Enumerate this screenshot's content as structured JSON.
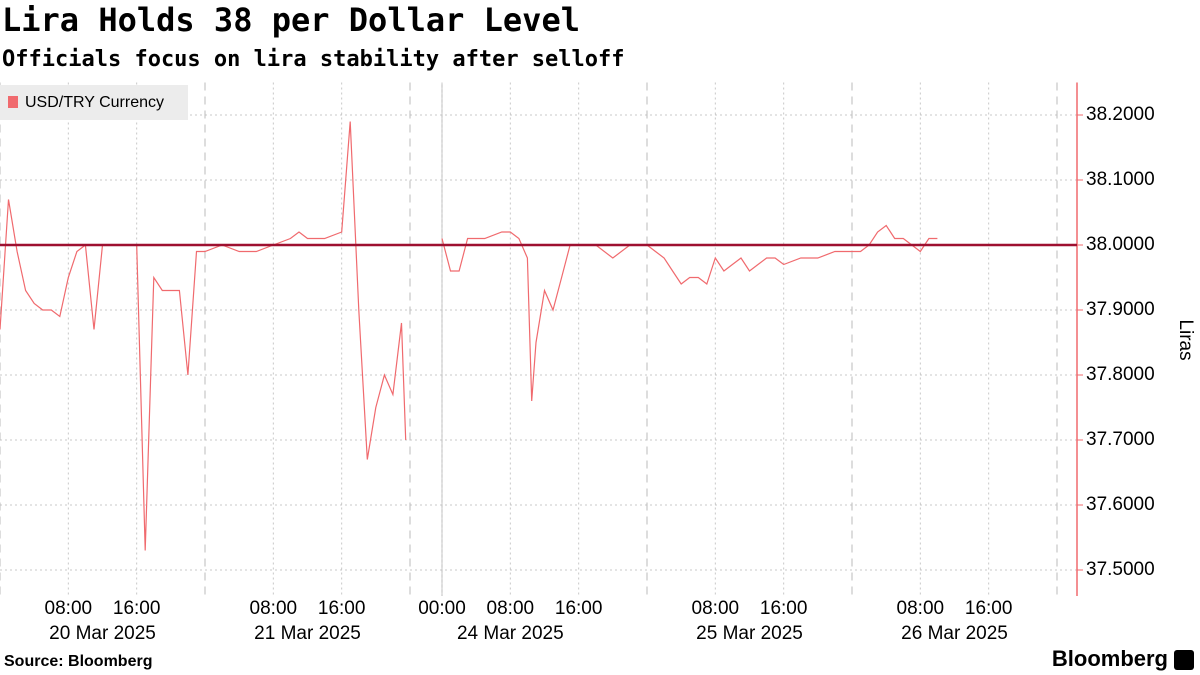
{
  "chart_data": {
    "type": "line",
    "title": "Lira Holds 38 per Dollar Level",
    "subtitle": "Officials focus on lira stability after selloff",
    "y_label": "Liras",
    "source": "Source: Bloomberg",
    "branding": "Bloomberg",
    "grid": true,
    "legend": "top-left",
    "reference_line": {
      "value": 38,
      "color": "#9e1030"
    },
    "xlim": [
      "2025-03-20 00:00",
      "2025-03-27 02:00"
    ],
    "ylim": [
      37.46,
      38.25
    ],
    "yticks": [
      {
        "value": 37.5,
        "label": "37.5000"
      },
      {
        "value": 37.6,
        "label": "37.6000"
      },
      {
        "value": 37.7,
        "label": "37.7000"
      },
      {
        "value": 37.8,
        "label": "37.8000"
      },
      {
        "value": 37.9,
        "label": "37.9000"
      },
      {
        "value": 38.0,
        "label": "38.0000"
      },
      {
        "value": 38.1,
        "label": "38.1000"
      },
      {
        "value": 38.2,
        "label": "38.2000"
      }
    ],
    "xticks": [
      {
        "value": "2025-03-20 08:00",
        "label": "08:00"
      },
      {
        "value": "2025-03-20 16:00",
        "label": "16:00"
      },
      {
        "value": "2025-03-21 08:00",
        "label": "08:00"
      },
      {
        "value": "2025-03-21 16:00",
        "label": "16:00"
      },
      {
        "value": "2025-03-24 00:00",
        "label": "00:00"
      },
      {
        "value": "2025-03-24 08:00",
        "label": "08:00"
      },
      {
        "value": "2025-03-24 16:00",
        "label": "16:00"
      },
      {
        "value": "2025-03-25 08:00",
        "label": "08:00"
      },
      {
        "value": "2025-03-25 16:00",
        "label": "16:00"
      },
      {
        "value": "2025-03-26 08:00",
        "label": "08:00"
      },
      {
        "value": "2025-03-26 16:00",
        "label": "16:00"
      }
    ],
    "date_labels": [
      {
        "value": "2025-03-20 12:00",
        "label": "20 Mar 2025"
      },
      {
        "value": "2025-03-21 12:00",
        "label": "21 Mar 2025"
      },
      {
        "value": "2025-03-24 08:00",
        "label": "24 Mar 2025"
      },
      {
        "value": "2025-03-25 12:00",
        "label": "25 Mar 2025"
      },
      {
        "value": "2025-03-26 12:00",
        "label": "26 Mar 2025"
      }
    ],
    "x": [
      "2025-03-20 00:00",
      "2025-03-20 01:00",
      "2025-03-20 02:00",
      "2025-03-20 03:00",
      "2025-03-20 04:00",
      "2025-03-20 05:00",
      "2025-03-20 06:00",
      "2025-03-20 07:00",
      "2025-03-20 08:00",
      "2025-03-20 09:00",
      "2025-03-20 10:00",
      "2025-03-20 11:00",
      "2025-03-20 12:00",
      "2025-03-20 13:00",
      "2025-03-20 14:00",
      "2025-03-20 15:00",
      "2025-03-20 16:00",
      "2025-03-20 17:00",
      "2025-03-20 18:00",
      "2025-03-20 19:00",
      "2025-03-20 20:00",
      "2025-03-20 21:00",
      "2025-03-20 22:00",
      "2025-03-20 23:00",
      "2025-03-21 00:00",
      "2025-03-21 02:00",
      "2025-03-21 04:00",
      "2025-03-21 06:00",
      "2025-03-21 08:00",
      "2025-03-21 10:00",
      "2025-03-21 11:00",
      "2025-03-21 12:00",
      "2025-03-21 14:00",
      "2025-03-21 16:00",
      "2025-03-21 17:00",
      "2025-03-21 18:00",
      "2025-03-21 19:00",
      "2025-03-21 20:00",
      "2025-03-21 21:00",
      "2025-03-21 22:00",
      "2025-03-21 23:00",
      "2025-03-21 23:30",
      "2025-03-22 12:00",
      "2025-03-24 00:00",
      "2025-03-24 01:00",
      "2025-03-24 02:00",
      "2025-03-24 03:00",
      "2025-03-24 05:00",
      "2025-03-24 07:00",
      "2025-03-24 08:00",
      "2025-03-24 09:00",
      "2025-03-24 10:00",
      "2025-03-24 10:30",
      "2025-03-24 11:00",
      "2025-03-24 12:00",
      "2025-03-24 13:00",
      "2025-03-24 14:00",
      "2025-03-24 15:00",
      "2025-03-24 16:00",
      "2025-03-24 18:00",
      "2025-03-24 20:00",
      "2025-03-24 22:00",
      "2025-03-25 00:00",
      "2025-03-25 01:00",
      "2025-03-25 02:00",
      "2025-03-25 03:00",
      "2025-03-25 04:00",
      "2025-03-25 05:00",
      "2025-03-25 06:00",
      "2025-03-25 07:00",
      "2025-03-25 08:00",
      "2025-03-25 09:00",
      "2025-03-25 10:00",
      "2025-03-25 11:00",
      "2025-03-25 12:00",
      "2025-03-25 13:00",
      "2025-03-25 14:00",
      "2025-03-25 15:00",
      "2025-03-25 16:00",
      "2025-03-25 18:00",
      "2025-03-25 20:00",
      "2025-03-25 22:00",
      "2025-03-26 00:00",
      "2025-03-26 01:00",
      "2025-03-26 02:00",
      "2025-03-26 03:00",
      "2025-03-26 04:00",
      "2025-03-26 05:00",
      "2025-03-26 06:00",
      "2025-03-26 07:00",
      "2025-03-26 08:00",
      "2025-03-26 09:00",
      "2025-03-26 10:00"
    ],
    "series": [
      {
        "name": "USD/TRY Currency",
        "color": "#f06a6e",
        "values": [
          37.87,
          38.07,
          37.99,
          37.93,
          37.91,
          37.9,
          37.9,
          37.89,
          37.95,
          37.99,
          38.0,
          37.87,
          38.0,
          38.0,
          38.0,
          38.0,
          38.0,
          37.53,
          37.95,
          37.93,
          37.93,
          37.93,
          37.8,
          37.99,
          37.99,
          38.0,
          37.99,
          37.99,
          38.0,
          38.01,
          38.02,
          38.01,
          38.01,
          38.02,
          38.19,
          37.9,
          37.67,
          37.75,
          37.8,
          37.77,
          37.88,
          37.7,
          null,
          38.01,
          37.96,
          37.96,
          38.01,
          38.01,
          38.02,
          38.02,
          38.01,
          37.98,
          37.76,
          37.85,
          37.93,
          37.9,
          37.95,
          38.0,
          38.0,
          38.0,
          37.98,
          38.0,
          38.0,
          37.99,
          37.98,
          37.96,
          37.94,
          37.95,
          37.95,
          37.94,
          37.98,
          37.96,
          37.97,
          37.98,
          37.96,
          37.97,
          37.98,
          37.98,
          37.97,
          37.98,
          37.98,
          37.99,
          37.99,
          37.99,
          38.0,
          38.02,
          38.03,
          38.01,
          38.01,
          38.0,
          37.99,
          38.01,
          38.01
        ]
      }
    ]
  }
}
